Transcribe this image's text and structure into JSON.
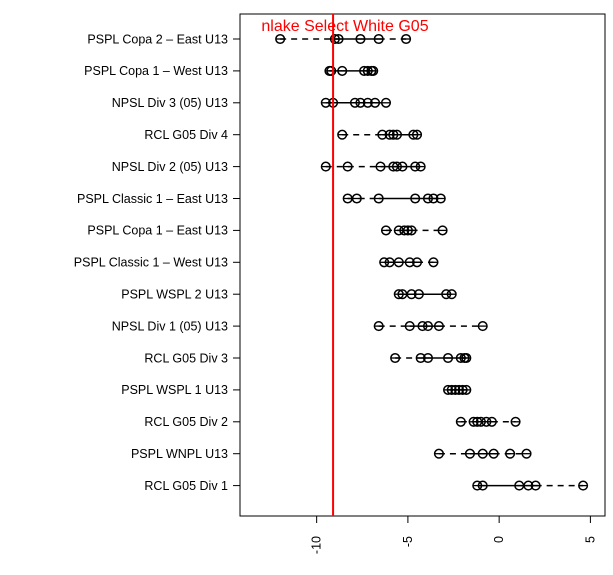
{
  "chart_data": {
    "type": "boxplot",
    "orientation": "horizontal",
    "title": "",
    "xlabel": "",
    "ylabel": "",
    "xlim": [
      -14.2,
      5.8
    ],
    "x_ticks": [
      -10,
      -5,
      0,
      5
    ],
    "x_tick_labels": [
      "-10",
      "-5",
      "0",
      "5"
    ],
    "grid": false,
    "reference_line": {
      "x": -9.1,
      "label": "nlake Select White G05",
      "color": "#ff0000"
    },
    "categories": [
      "PSPL Copa 2 – East U13",
      "PSPL Copa 1 – West U13",
      "NPSL Div 3 (05) U13",
      "RCL G05 Div 4",
      "NPSL Div 2 (05) U13",
      "PSPL Classic 1 – East U13",
      "PSPL Copa 1 – East U13",
      "PSPL Classic 1 – West U13",
      "PSPL WSPL 2 U13",
      "NPSL Div 1 (05) U13",
      "RCL G05 Div 3",
      "PSPL WSPL 1 U13",
      "RCL G05 Div 2",
      "PSPL WNPL U13",
      "RCL G05 Div 1"
    ],
    "series": [
      {
        "min": -12.0,
        "q1": -9.0,
        "median": -7.6,
        "q3": -6.6,
        "max": -5.1,
        "points": [
          -12.0,
          -9.0,
          -8.8,
          -7.6,
          -6.6,
          -5.1
        ]
      },
      {
        "min": -9.3,
        "q1": -9.2,
        "median": -7.3,
        "q3": -7.0,
        "max": -6.9,
        "points": [
          -9.3,
          -9.2,
          -8.6,
          -7.4,
          -7.2,
          -7.0,
          -6.9
        ]
      },
      {
        "min": -9.5,
        "q1": -9.1,
        "median": -7.6,
        "q3": -6.8,
        "max": -6.2,
        "points": [
          -9.5,
          -9.1,
          -7.9,
          -7.6,
          -7.2,
          -6.8,
          -6.2
        ]
      },
      {
        "min": -8.6,
        "q1": -6.4,
        "median": -5.8,
        "q3": -4.6,
        "max": -4.5,
        "points": [
          -8.6,
          -6.4,
          -6.0,
          -5.8,
          -5.6,
          -4.7,
          -4.5
        ]
      },
      {
        "min": -9.5,
        "q1": -6.5,
        "median": -5.6,
        "q3": -4.6,
        "max": -4.3,
        "points": [
          -9.5,
          -8.3,
          -6.5,
          -5.8,
          -5.6,
          -5.3,
          -4.6,
          -4.3
        ]
      },
      {
        "min": -8.3,
        "q1": -6.6,
        "median": -4.6,
        "q3": -3.8,
        "max": -3.2,
        "points": [
          -8.3,
          -7.8,
          -6.6,
          -4.6,
          -3.9,
          -3.6,
          -3.2
        ]
      },
      {
        "min": -6.2,
        "q1": -5.3,
        "median": -5.0,
        "q3": -4.8,
        "max": -3.1,
        "points": [
          -6.2,
          -5.5,
          -5.2,
          -5.0,
          -4.8,
          -3.1
        ]
      },
      {
        "min": -6.3,
        "q1": -6.0,
        "median": -5.0,
        "q3": -4.5,
        "max": -3.6,
        "points": [
          -6.3,
          -6.0,
          -5.5,
          -4.9,
          -4.5,
          -3.6
        ]
      },
      {
        "min": -5.5,
        "q1": -5.3,
        "median": -4.5,
        "q3": -2.9,
        "max": -2.6,
        "points": [
          -5.5,
          -5.3,
          -4.8,
          -4.4,
          -2.9,
          -2.6
        ]
      },
      {
        "min": -6.6,
        "q1": -4.9,
        "median": -4.2,
        "q3": -3.3,
        "max": -0.9,
        "points": [
          -6.6,
          -4.9,
          -4.2,
          -3.9,
          -3.3,
          -0.9
        ]
      },
      {
        "min": -5.7,
        "q1": -4.3,
        "median": -3.9,
        "q3": -2.1,
        "max": -1.8,
        "points": [
          -5.7,
          -4.3,
          -3.9,
          -2.8,
          -2.1,
          -1.9,
          -1.8
        ]
      },
      {
        "min": -2.8,
        "q1": -2.5,
        "median": -2.2,
        "q3": -2.0,
        "max": -1.8,
        "points": [
          -2.8,
          -2.6,
          -2.4,
          -2.2,
          -2.0,
          -1.8
        ]
      },
      {
        "min": -2.1,
        "q1": -1.3,
        "median": -1.0,
        "q3": -0.4,
        "max": 0.9,
        "points": [
          -2.1,
          -1.4,
          -1.2,
          -1.0,
          -0.7,
          -0.4,
          0.9
        ]
      },
      {
        "min": -3.3,
        "q1": -1.6,
        "median": -0.9,
        "q3": -0.3,
        "max": 1.5,
        "points": [
          -3.3,
          -1.6,
          -0.9,
          -0.3,
          0.6,
          1.5
        ]
      },
      {
        "min": -1.2,
        "q1": -0.9,
        "median": 1.1,
        "q3": 2.0,
        "max": 4.6,
        "points": [
          -1.2,
          -0.9,
          1.1,
          1.6,
          2.0,
          4.6
        ]
      }
    ]
  }
}
